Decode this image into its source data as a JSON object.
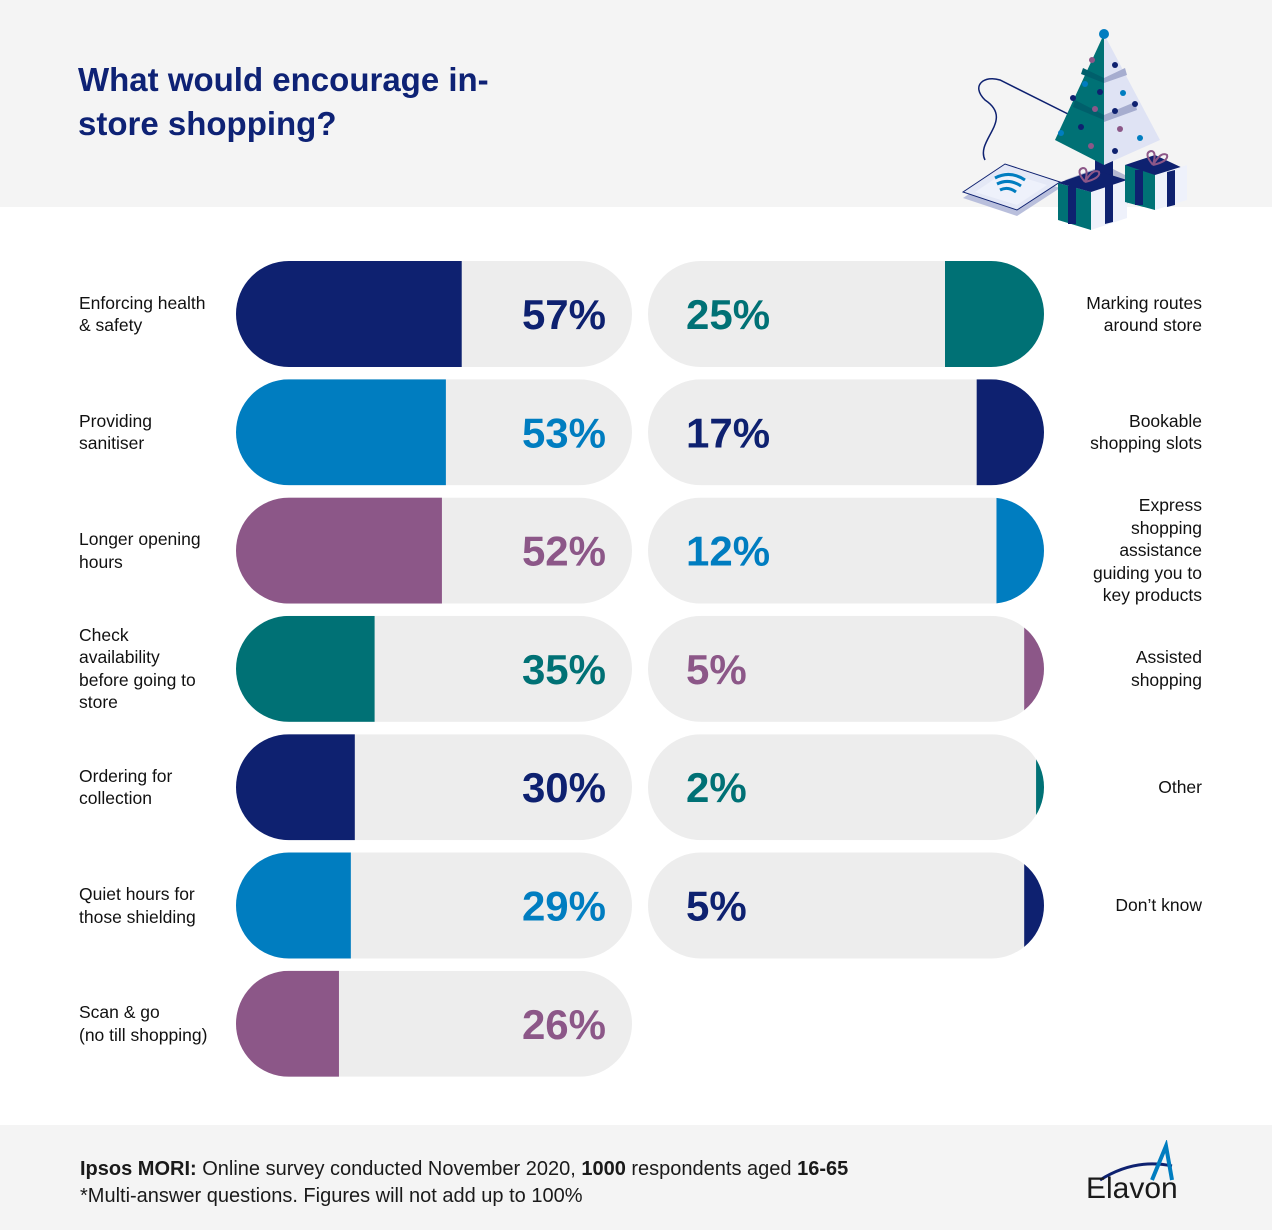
{
  "header": {
    "title": "What would encourage in-store shopping?",
    "illustration": "christmas-tree-card-reader-gifts"
  },
  "colors": {
    "navy": "#0e2170",
    "blue": "#007dc0",
    "purple": "#8c5788",
    "teal": "#007175",
    "track": "#ededed",
    "title": "#0e2275"
  },
  "chart_data": {
    "type": "bar",
    "title": "What would encourage in-store shopping?",
    "unit": "%",
    "xlim": [
      0,
      100
    ],
    "grid": false,
    "left_column": [
      {
        "label": "Enforcing health\n& safety",
        "value": 57,
        "display": "57%",
        "color": "#0e2170"
      },
      {
        "label": "Providing\nsanitiser",
        "value": 53,
        "display": "53%",
        "color": "#007dc0"
      },
      {
        "label": "Longer opening\nhours",
        "value": 52,
        "display": "52%",
        "color": "#8c5788"
      },
      {
        "label": "Check\navailability\nbefore going to\nstore",
        "value": 35,
        "display": "35%",
        "color": "#007175"
      },
      {
        "label": "Ordering for\ncollection",
        "value": 30,
        "display": "30%",
        "color": "#0e2170"
      },
      {
        "label": "Quiet hours for\nthose shielding",
        "value": 29,
        "display": "29%",
        "color": "#007dc0"
      },
      {
        "label": "Scan & go\n(no till shopping)",
        "value": 26,
        "display": "26%",
        "color": "#8c5788"
      }
    ],
    "right_column": [
      {
        "label": "Marking routes\naround store",
        "value": 25,
        "display": "25%",
        "color": "#007175"
      },
      {
        "label": "Bookable\nshopping slots",
        "value": 17,
        "display": "17%",
        "color": "#0e2170"
      },
      {
        "label": "Express\nshopping\nassistance\nguiding you to\nkey products",
        "value": 12,
        "display": "12%",
        "color": "#007dc0"
      },
      {
        "label": "Assisted\nshopping",
        "value": 5,
        "display": "5%",
        "color": "#8c5788"
      },
      {
        "label": "Other",
        "value": 2,
        "display": "2%",
        "color": "#007175"
      },
      {
        "label": "Don’t know",
        "value": 5,
        "display": "5%",
        "color": "#0e2170"
      }
    ]
  },
  "footer": {
    "source_name": "Ipsos MORI:",
    "source_text_a": " Online survey conducted November 2020, ",
    "respondents": "1000",
    "source_text_b": " respondents aged ",
    "age_range": "16-65",
    "note": "*Multi-answer questions. Figures will not add up to 100%",
    "brand": "Elavon"
  }
}
